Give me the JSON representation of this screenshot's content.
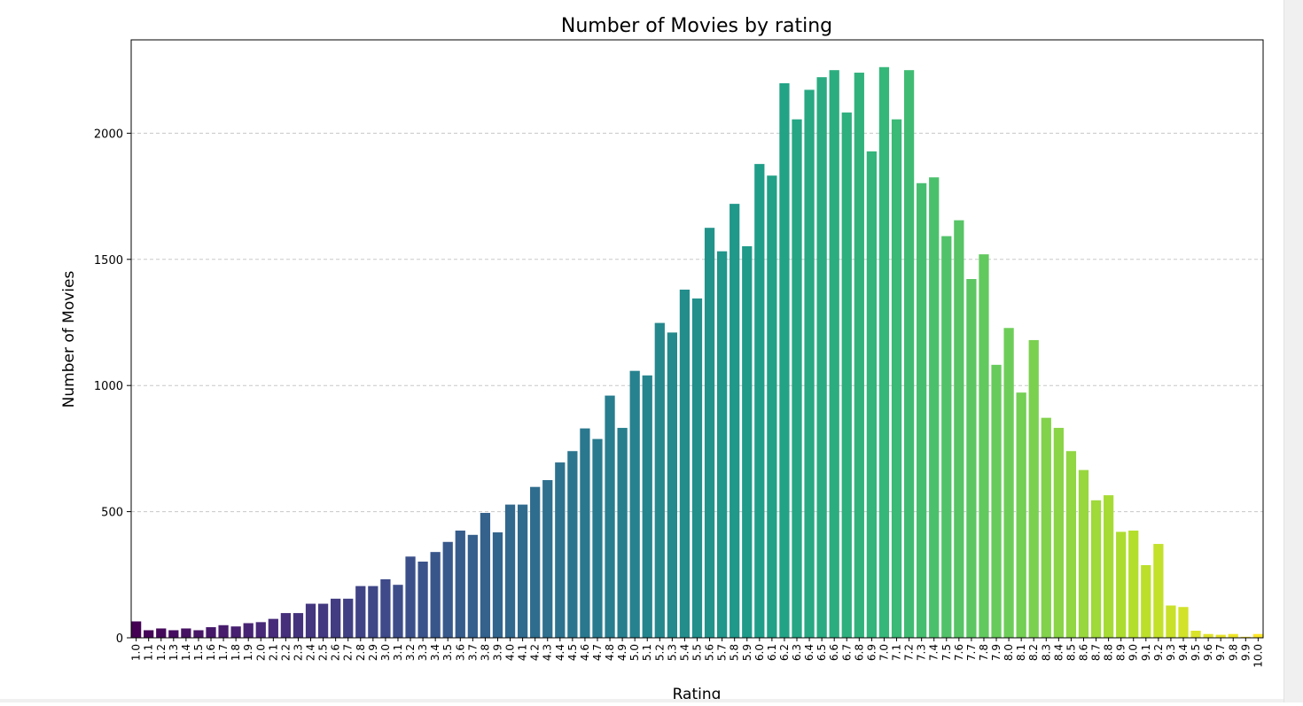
{
  "chart_data": {
    "type": "bar",
    "title": "Number of Movies by rating",
    "xlabel": "Rating",
    "ylabel": "Number of Movies",
    "ylim": [
      0,
      2370
    ],
    "yticks": [
      0,
      500,
      1000,
      1500,
      2000
    ],
    "grid": "y-dashed",
    "categories": [
      "1.0",
      "1.1",
      "1.2",
      "1.3",
      "1.4",
      "1.5",
      "1.6",
      "1.7",
      "1.8",
      "1.9",
      "2.0",
      "2.1",
      "2.2",
      "2.3",
      "2.4",
      "2.5",
      "2.6",
      "2.7",
      "2.8",
      "2.9",
      "3.0",
      "3.1",
      "3.2",
      "3.3",
      "3.4",
      "3.5",
      "3.6",
      "3.7",
      "3.8",
      "3.9",
      "4.0",
      "4.1",
      "4.2",
      "4.3",
      "4.4",
      "4.5",
      "4.6",
      "4.7",
      "4.8",
      "4.9",
      "5.0",
      "5.1",
      "5.2",
      "5.3",
      "5.4",
      "5.5",
      "5.6",
      "5.7",
      "5.8",
      "5.9",
      "6.0",
      "6.1",
      "6.2",
      "6.3",
      "6.4",
      "6.5",
      "6.6",
      "6.7",
      "6.8",
      "6.9",
      "7.0",
      "7.1",
      "7.2",
      "7.3",
      "7.4",
      "7.5",
      "7.6",
      "7.7",
      "7.8",
      "7.9",
      "8.0",
      "8.1",
      "8.2",
      "8.3",
      "8.4",
      "8.5",
      "8.6",
      "8.7",
      "8.8",
      "8.9",
      "9.0",
      "9.1",
      "9.2",
      "9.3",
      "9.4",
      "9.5",
      "9.6",
      "9.7",
      "9.8",
      "9.9",
      "10.0"
    ],
    "values": [
      65,
      30,
      37,
      30,
      37,
      30,
      42,
      50,
      45,
      58,
      62,
      75,
      98,
      98,
      135,
      135,
      155,
      155,
      205,
      205,
      232,
      210,
      322,
      302,
      340,
      380,
      425,
      408,
      495,
      418,
      528,
      528,
      598,
      625,
      695,
      740,
      830,
      788,
      960,
      832,
      1058,
      1040,
      1248,
      1210,
      1380,
      1345,
      1625,
      1532,
      1720,
      1552,
      1878,
      1832,
      2198,
      2055,
      2172,
      2222,
      2250,
      2082,
      2240,
      1928,
      2262,
      2055,
      2250,
      1802,
      1825,
      1592,
      1655,
      1422,
      1520,
      1082,
      1228,
      972,
      1180,
      872,
      832,
      740,
      665,
      545,
      565,
      420,
      425,
      288,
      372,
      128,
      122,
      28,
      15,
      12,
      15,
      4,
      15
    ],
    "palette": "viridis"
  }
}
